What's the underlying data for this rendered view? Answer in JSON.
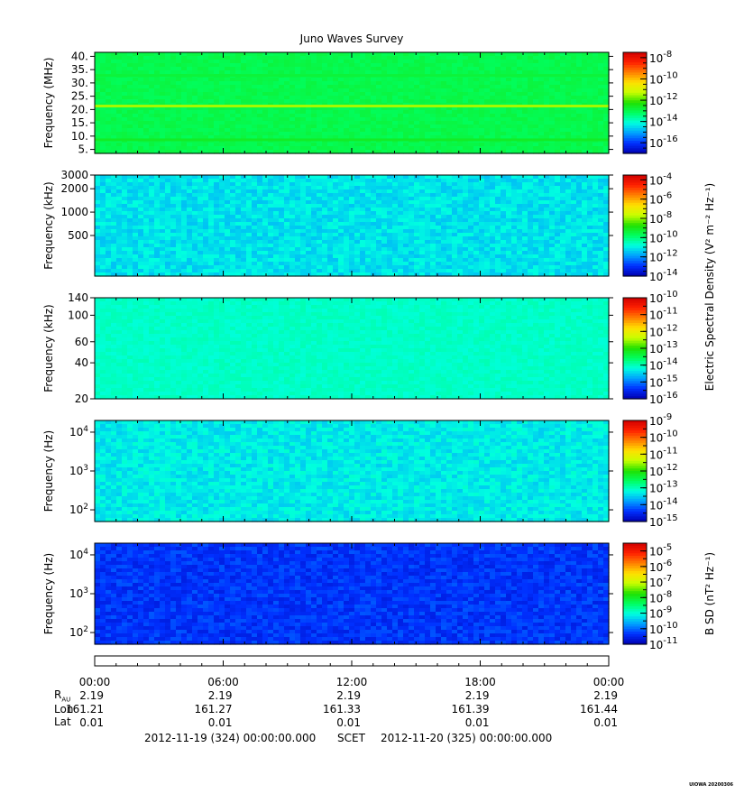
{
  "title": "Juno Waves Survey",
  "colors": {
    "colormap": [
      "#0000b0",
      "#0030ff",
      "#00a0ff",
      "#00ffe0",
      "#00ff60",
      "#20e000",
      "#c8ff00",
      "#ffe000",
      "#ff8000",
      "#ff2000",
      "#d00000"
    ]
  },
  "chart_data": [
    {
      "type": "heatmap",
      "panel": 1,
      "ylabel": "Frequency (MHz)",
      "yscale": "linear",
      "ylim": [
        3.5,
        41.5
      ],
      "yticks": [
        {
          "v": 40,
          "t": "40."
        },
        {
          "v": 35,
          "t": "35."
        },
        {
          "v": 30,
          "t": "30."
        },
        {
          "v": 25,
          "t": "25."
        },
        {
          "v": 20,
          "t": "20."
        },
        {
          "v": 15,
          "t": "15."
        },
        {
          "v": 10,
          "t": "10."
        },
        {
          "v": 5,
          "t": "5."
        }
      ],
      "xlim": [
        0,
        24
      ],
      "base_level": 0.42,
      "bands": [
        {
          "y": 21.3,
          "level": 0.58
        },
        {
          "y": 8.6,
          "level": 0.46
        },
        {
          "y": 32.8,
          "level": 0.44
        }
      ],
      "colorbar": {
        "label": "",
        "exp_ticks": [
          "-8",
          "-10",
          "-12",
          "-14",
          "-16"
        ],
        "range": [
          -17,
          -7.5
        ]
      }
    },
    {
      "type": "heatmap",
      "panel": 2,
      "ylabel": "Frequency (kHz)",
      "yscale": "log",
      "ylim": [
        150,
        3000
      ],
      "yticks": [
        {
          "v": 3000,
          "t": "3000"
        },
        {
          "v": 2000,
          "t": "2000"
        },
        {
          "v": 1000,
          "t": "1000"
        },
        {
          "v": 500,
          "t": "500"
        }
      ],
      "xlim": [
        0,
        24
      ],
      "profile": [
        {
          "f": 150,
          "level": 0.38
        },
        {
          "f": 200,
          "level": 0.45
        },
        {
          "f": 280,
          "level": 0.4
        },
        {
          "f": 400,
          "level": 0.27
        },
        {
          "f": 700,
          "level": 0.24
        },
        {
          "f": 1300,
          "level": 0.26
        },
        {
          "f": 1600,
          "level": 0.38
        },
        {
          "f": 1900,
          "level": 0.28
        },
        {
          "f": 2500,
          "level": 0.27
        }
      ],
      "colorbar": {
        "label": "Electric Spectral Density (V² m⁻² Hz⁻¹)",
        "exp_ticks": [
          "-4",
          "-6",
          "-8",
          "-10",
          "-12",
          "-14"
        ],
        "range": [
          -14,
          -3.5
        ]
      }
    },
    {
      "type": "heatmap",
      "panel": 3,
      "ylabel": "Frequency (kHz)",
      "yscale": "log",
      "ylim": [
        20,
        140
      ],
      "yticks": [
        {
          "v": 140,
          "t": "140"
        },
        {
          "v": 100,
          "t": "100"
        },
        {
          "v": 60,
          "t": "60"
        },
        {
          "v": 40,
          "t": "40"
        },
        {
          "v": 20,
          "t": "20"
        }
      ],
      "xlim": [
        0,
        24
      ],
      "base_level": 0.32,
      "colorbar": {
        "label": "",
        "exp_ticks": [
          "-10",
          "-11",
          "-12",
          "-13",
          "-14",
          "-15",
          "-16"
        ],
        "range": [
          -16,
          -10
        ]
      }
    },
    {
      "type": "heatmap",
      "panel": 4,
      "ylabel": "Frequency (Hz)",
      "yscale": "log",
      "ylim": [
        50,
        20000
      ],
      "yticks": [
        {
          "v": 10000,
          "t": "10",
          "e": "4"
        },
        {
          "v": 1000,
          "t": "10",
          "e": "3"
        },
        {
          "v": 100,
          "t": "10",
          "e": "2"
        }
      ],
      "xlim": [
        0,
        24
      ],
      "profile": [
        {
          "f": 50,
          "level": 0.82
        },
        {
          "f": 100,
          "level": 0.78
        },
        {
          "f": 200,
          "level": 0.68
        },
        {
          "f": 400,
          "level": 0.52
        },
        {
          "f": 1000,
          "level": 0.4
        },
        {
          "f": 3000,
          "level": 0.3
        },
        {
          "f": 8000,
          "level": 0.24
        },
        {
          "f": 20000,
          "level": 0.28
        }
      ],
      "colorbar": {
        "label": "",
        "exp_ticks": [
          "-9",
          "-10",
          "-11",
          "-12",
          "-13",
          "-14",
          "-15"
        ],
        "range": [
          -15,
          -9
        ]
      }
    },
    {
      "type": "heatmap",
      "panel": 5,
      "ylabel": "Frequency (Hz)",
      "yscale": "log",
      "ylim": [
        50,
        20000
      ],
      "yticks": [
        {
          "v": 10000,
          "t": "10",
          "e": "4"
        },
        {
          "v": 1000,
          "t": "10",
          "e": "3"
        },
        {
          "v": 100,
          "t": "10",
          "e": "2"
        }
      ],
      "xlim": [
        0,
        24
      ],
      "profile": [
        {
          "f": 50,
          "level": 0.52
        },
        {
          "f": 200,
          "level": 0.44
        },
        {
          "f": 1000,
          "level": 0.36
        },
        {
          "f": 3000,
          "level": 0.24
        },
        {
          "f": 7000,
          "level": 0.1
        },
        {
          "f": 12000,
          "level": 0.14
        },
        {
          "f": 20000,
          "level": 0.1
        }
      ],
      "colorbar": {
        "label": "B SD (nT² Hz⁻¹)",
        "exp_ticks": [
          "-5",
          "-6",
          "-7",
          "-8",
          "-9",
          "-10",
          "-11"
        ],
        "range": [
          -11,
          -4.5
        ]
      }
    }
  ],
  "time_axis": {
    "ticks": [
      "00:00",
      "06:00",
      "12:00",
      "18:00",
      "00:00"
    ],
    "minor_per_hour": true
  },
  "ephemeris": {
    "rows": [
      {
        "label": "R",
        "sub": "AU",
        "values": [
          "2.19",
          "2.19",
          "2.19",
          "2.19",
          "2.19"
        ]
      },
      {
        "label": "Lon",
        "values": [
          "161.21",
          "161.27",
          "161.33",
          "161.39",
          "161.44"
        ]
      },
      {
        "label": "Lat",
        "values": [
          "0.01",
          "0.01",
          "0.01",
          "0.01",
          "0.01"
        ]
      }
    ]
  },
  "footer": {
    "start": "2012-11-19 (324) 00:00:00.000",
    "frame": "SCET",
    "end": "2012-11-20 (325) 00:00:00.000"
  },
  "credit": "UIOWA 20200306"
}
